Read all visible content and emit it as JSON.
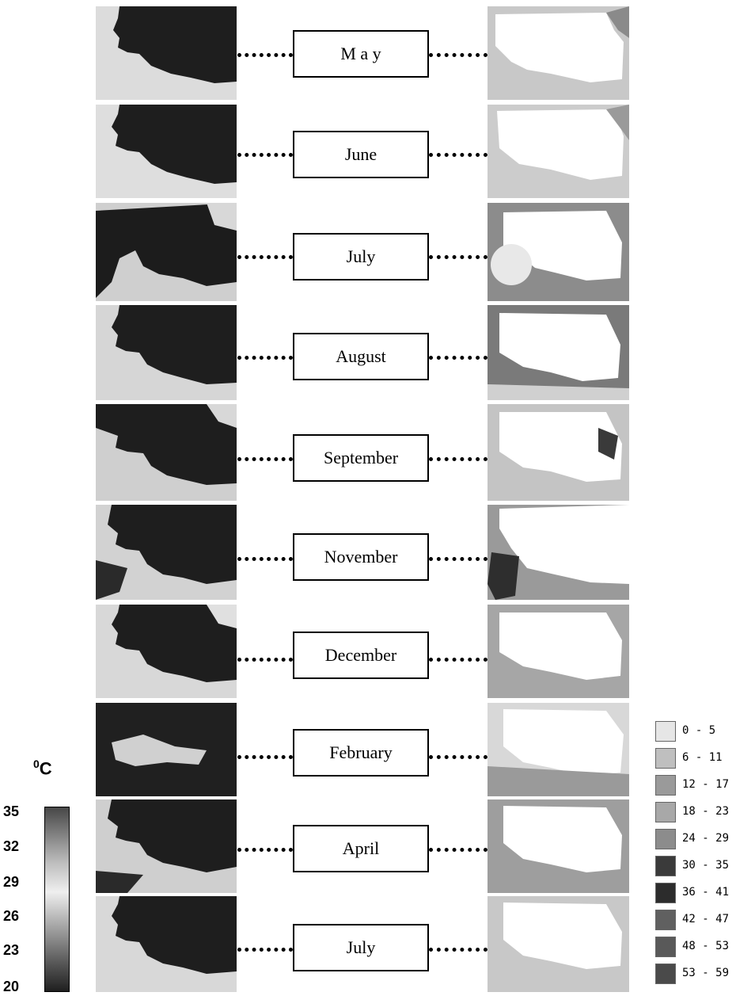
{
  "rows": [
    {
      "month": "M a y"
    },
    {
      "month": "June"
    },
    {
      "month": "July"
    },
    {
      "month": "August"
    },
    {
      "month": "September"
    },
    {
      "month": "November"
    },
    {
      "month": "December"
    },
    {
      "month": "February"
    },
    {
      "month": "April"
    },
    {
      "month": "July"
    }
  ],
  "temperature_scale": {
    "unit_base": "C",
    "unit_sup": "0",
    "ticks": [
      "35",
      "32",
      "29",
      "26",
      "23",
      "20"
    ]
  },
  "legend": {
    "items": [
      {
        "label": "0 - 5",
        "color": "#e6e6e6"
      },
      {
        "label": "6 - 11",
        "color": "#bfbfbf"
      },
      {
        "label": "12 - 17",
        "color": "#9a9a9a"
      },
      {
        "label": "18 - 23",
        "color": "#a8a8a8"
      },
      {
        "label": "24 - 29",
        "color": "#8c8c8c"
      },
      {
        "label": "30 - 35",
        "color": "#3a3a3a"
      },
      {
        "label": "36 - 41",
        "color": "#2c2c2c"
      },
      {
        "label": "42 - 47",
        "color": "#606060"
      },
      {
        "label": "48 - 53",
        "color": "#595959"
      },
      {
        "label": "53 - 59",
        "color": "#4a4a4a"
      }
    ]
  }
}
